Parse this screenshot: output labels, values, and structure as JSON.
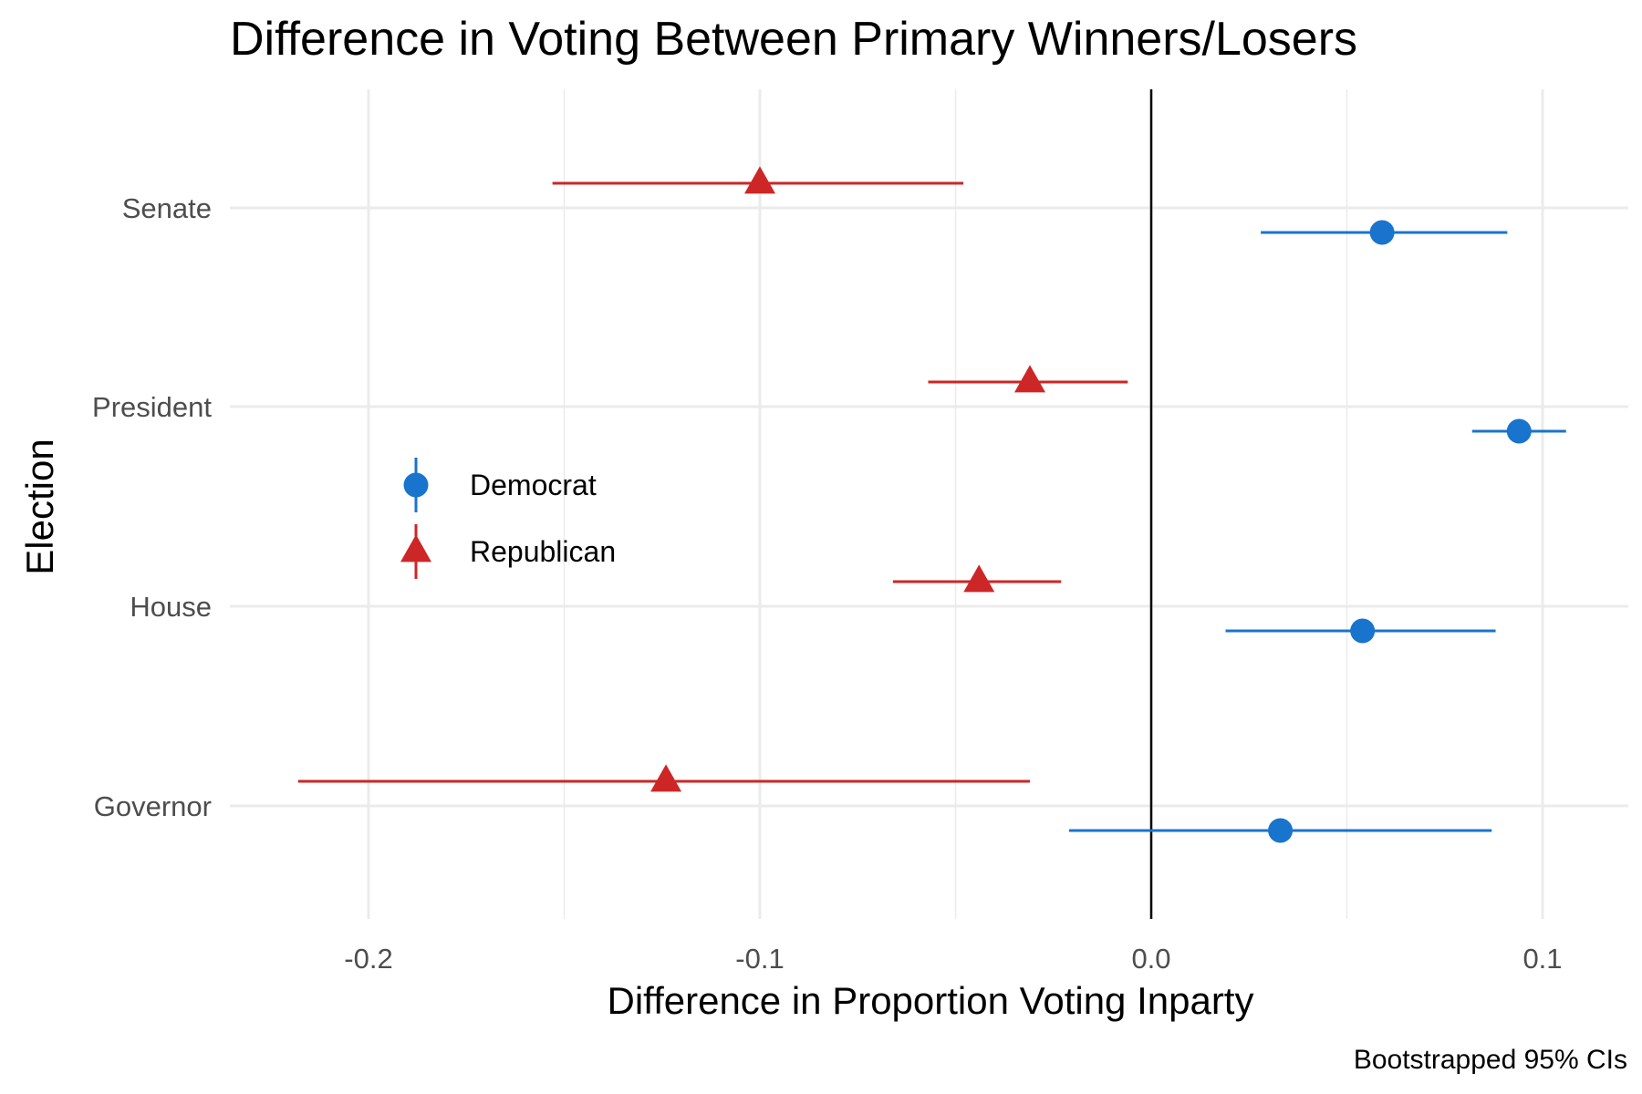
{
  "chart_data": {
    "type": "scatter",
    "subtype": "point-range (dot-and-whisker)",
    "title": "Difference in Voting Between Primary Winners/Losers",
    "xlabel": "Difference in Proportion Voting Inparty",
    "ylabel": "Election",
    "caption": "Bootstrapped 95% CIs",
    "xlim": [
      -0.24,
      0.12
    ],
    "x_ticks": [
      -0.2,
      -0.1,
      0.0,
      0.1
    ],
    "x_tick_labels": [
      "-0.2",
      "-0.1",
      "0.0",
      "0.1"
    ],
    "categories": [
      "Senate",
      "President",
      "House",
      "Governor"
    ],
    "reference_line_x": 0,
    "grid": true,
    "legend_position": "left, inside plot",
    "series": [
      {
        "name": "Democrat",
        "color": "#1874CD",
        "shape": "circle",
        "points": [
          {
            "category": "Senate",
            "estimate": 0.059,
            "lower": 0.028,
            "upper": 0.091
          },
          {
            "category": "President",
            "estimate": 0.094,
            "lower": 0.082,
            "upper": 0.106
          },
          {
            "category": "House",
            "estimate": 0.054,
            "lower": 0.019,
            "upper": 0.088
          },
          {
            "category": "Governor",
            "estimate": 0.033,
            "lower": -0.021,
            "upper": 0.087
          }
        ]
      },
      {
        "name": "Republican",
        "color": "#CD2626",
        "shape": "triangle",
        "points": [
          {
            "category": "Senate",
            "estimate": -0.1,
            "lower": -0.153,
            "upper": -0.048
          },
          {
            "category": "President",
            "estimate": -0.031,
            "lower": -0.057,
            "upper": -0.006
          },
          {
            "category": "House",
            "estimate": -0.044,
            "lower": -0.066,
            "upper": -0.023
          },
          {
            "category": "Governor",
            "estimate": -0.124,
            "lower": -0.218,
            "upper": -0.031
          }
        ]
      }
    ]
  }
}
